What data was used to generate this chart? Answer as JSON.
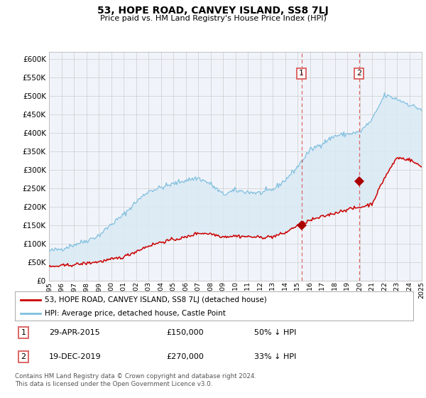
{
  "title": "53, HOPE ROAD, CANVEY ISLAND, SS8 7LJ",
  "subtitle": "Price paid vs. HM Land Registry's House Price Index (HPI)",
  "legend_line1": "53, HOPE ROAD, CANVEY ISLAND, SS8 7LJ (detached house)",
  "legend_line2": "HPI: Average price, detached house, Castle Point",
  "footnote": "Contains HM Land Registry data © Crown copyright and database right 2024.\nThis data is licensed under the Open Government Licence v3.0.",
  "hpi_color": "#7fbfdf",
  "hpi_fill_color": "#daeaf5",
  "price_color": "#cc0000",
  "marker_color": "#aa0000",
  "vline_color": "#dd6666",
  "grid_color": "#cccccc",
  "bg_color": "#ffffff",
  "plot_bg_color": "#f0f4fa",
  "ylim": [
    0,
    620000
  ],
  "yticks": [
    0,
    50000,
    100000,
    150000,
    200000,
    250000,
    300000,
    350000,
    400000,
    450000,
    500000,
    550000,
    600000
  ],
  "year_start": 1995,
  "year_end": 2025,
  "sale1_year": 2015.33,
  "sale1_price": 150000,
  "sale2_year": 2019.96,
  "sale2_price": 270000,
  "ann1_date": "29-APR-2015",
  "ann1_price": "£150,000",
  "ann1_pct": "50% ↓ HPI",
  "ann2_date": "19-DEC-2019",
  "ann2_price": "£270,000",
  "ann2_pct": "33% ↓ HPI"
}
